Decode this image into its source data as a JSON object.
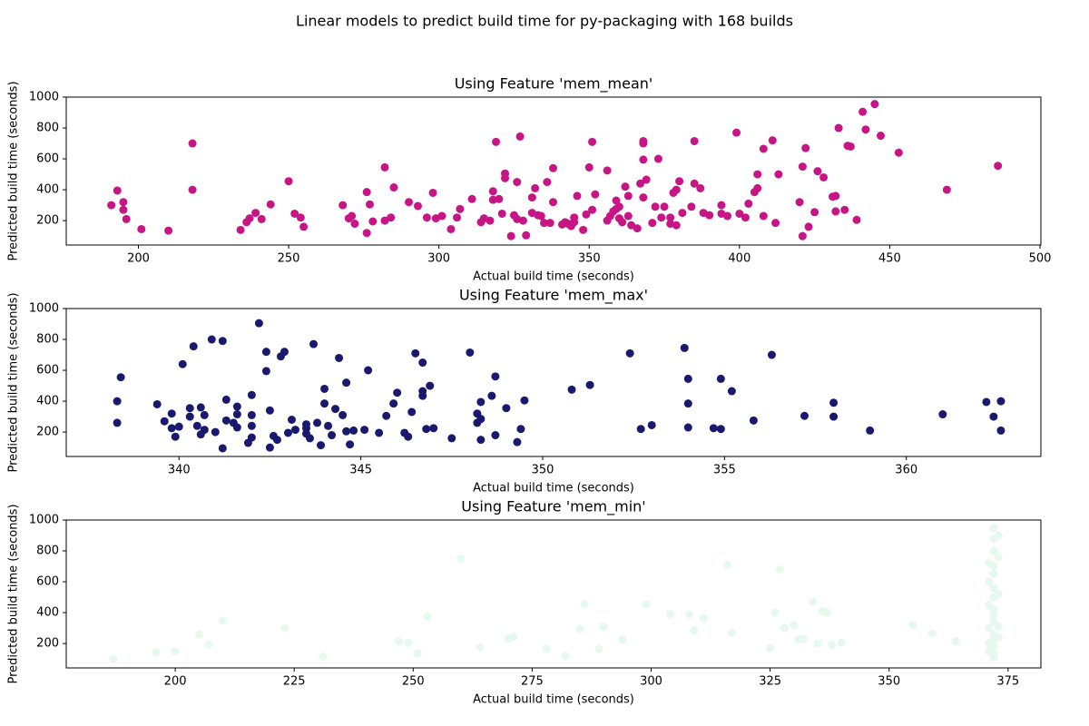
{
  "title": "Linear models to predict build time for py-packaging with 168 builds",
  "chart_data": [
    {
      "type": "scatter",
      "title": "Using Feature 'mem_mean'",
      "xlabel": "Actual build time (seconds)",
      "ylabel": "Predicted build time (seconds)",
      "color": "#c71585",
      "xlim": [
        176,
        500.3
      ],
      "ylim": [
        42,
        1000
      ],
      "xticks": [
        200,
        250,
        300,
        350,
        400,
        450,
        500
      ],
      "yticks": [
        200,
        400,
        600,
        800,
        1000
      ],
      "x": [
        191,
        193,
        195,
        195,
        196,
        201,
        210,
        218,
        218,
        234,
        236,
        237,
        239,
        241,
        244,
        250,
        252,
        254,
        255,
        268,
        270,
        271,
        272,
        276,
        276,
        277,
        278,
        282,
        282,
        284,
        285,
        290,
        293,
        296,
        298,
        299,
        301,
        304,
        306,
        307,
        311,
        314,
        315,
        317,
        318,
        318,
        319,
        320,
        321,
        322,
        322,
        324,
        325,
        326,
        326,
        327,
        328,
        329,
        331,
        331,
        332,
        333,
        334,
        335,
        336,
        337,
        338,
        338,
        341,
        342,
        343,
        344,
        345,
        345,
        346,
        348,
        349,
        350,
        351,
        351,
        352,
        356,
        356,
        357,
        358,
        359,
        359,
        360,
        360,
        361,
        362,
        363,
        363,
        364,
        366,
        367,
        368,
        368,
        368,
        368,
        369,
        371,
        372,
        373,
        374,
        375,
        377,
        377,
        378,
        379,
        379,
        380,
        381,
        384,
        385,
        385,
        387,
        388,
        390,
        394,
        394,
        396,
        399,
        400,
        402,
        403,
        405,
        406,
        406,
        408,
        408,
        411,
        412,
        413,
        420,
        421,
        421,
        422,
        423,
        425,
        426,
        428,
        431,
        432,
        432,
        433,
        435,
        436,
        437,
        439,
        441,
        442,
        445,
        447,
        453,
        469,
        486
      ],
      "values": [
        300,
        395,
        270,
        320,
        210,
        145,
        135,
        700,
        400,
        140,
        190,
        215,
        250,
        210,
        305,
        455,
        245,
        220,
        160,
        300,
        215,
        230,
        180,
        120,
        385,
        305,
        195,
        545,
        200,
        220,
        415,
        320,
        295,
        220,
        380,
        215,
        230,
        145,
        220,
        275,
        340,
        190,
        215,
        200,
        335,
        390,
        710,
        340,
        245,
        475,
        505,
        100,
        235,
        210,
        450,
        745,
        200,
        105,
        350,
        250,
        410,
        235,
        230,
        185,
        450,
        185,
        540,
        320,
        175,
        190,
        180,
        165,
        190,
        220,
        360,
        140,
        240,
        545,
        710,
        270,
        370,
        200,
        525,
        230,
        260,
        330,
        275,
        290,
        215,
        190,
        420,
        230,
        360,
        170,
        150,
        440,
        700,
        715,
        350,
        595,
        465,
        185,
        290,
        600,
        220,
        290,
        180,
        220,
        380,
        400,
        170,
        455,
        250,
        290,
        440,
        715,
        410,
        250,
        235,
        300,
        245,
        230,
        770,
        245,
        220,
        310,
        385,
        410,
        500,
        230,
        665,
        720,
        185,
        500,
        320,
        100,
        550,
        670,
        160,
        255,
        520,
        480,
        355,
        360,
        260,
        800,
        270,
        685,
        680,
        205,
        905,
        790,
        955,
        750,
        640,
        400,
        555
      ]
    },
    {
      "type": "scatter",
      "title": "Using Feature 'mem_max'",
      "xlabel": "Actual build time (seconds)",
      "ylabel": "Predicted build time (seconds)",
      "color": "#191970",
      "xlim": [
        336.9,
        363.7
      ],
      "ylim": [
        42,
        1000
      ],
      "xticks": [
        340,
        345,
        350,
        355,
        360
      ],
      "yticks": [
        200,
        400,
        600,
        800,
        1000
      ],
      "x": [
        338.3,
        338.3,
        338.4,
        339.4,
        339.6,
        339.8,
        339.8,
        339.9,
        340,
        340.1,
        340.3,
        340.3,
        340.4,
        340.5,
        340.6,
        340.6,
        340.7,
        340.7,
        340.9,
        341,
        341.2,
        341.3,
        341.3,
        341.2,
        341.5,
        341.6,
        341.6,
        341.6,
        341.9,
        342,
        342,
        342,
        342,
        342.2,
        342.4,
        342.4,
        342.5,
        342.5,
        342.6,
        342.7,
        342.8,
        342.9,
        343,
        343.1,
        343.2,
        343.5,
        343.5,
        343.5,
        343.6,
        343.7,
        343.8,
        343.9,
        344,
        344,
        344.1,
        344.2,
        344.3,
        344.5,
        344.4,
        344.6,
        344.6,
        344.7,
        344.8,
        345.1,
        345.2,
        345.5,
        345.7,
        345.9,
        346,
        346.2,
        346.3,
        346.4,
        346.5,
        346.7,
        346.7,
        346.7,
        346.8,
        346.9,
        347,
        347.5,
        348,
        348.2,
        348.2,
        348.3,
        348.3,
        348.3,
        348.6,
        348.7,
        348.7,
        349,
        349.3,
        349.4,
        349.5,
        350.8,
        351.3,
        352.4,
        352.7,
        353,
        353.9,
        354,
        354,
        354,
        354.7,
        354.9,
        354.9,
        355.2,
        355.8,
        356.3,
        357.2,
        358,
        358,
        359,
        361,
        362.2,
        362.4,
        362.6,
        362.6
      ],
      "values": [
        400,
        260,
        555,
        380,
        270,
        320,
        225,
        170,
        235,
        640,
        355,
        300,
        755,
        240,
        360,
        185,
        310,
        215,
        800,
        200,
        790,
        410,
        275,
        95,
        260,
        365,
        230,
        315,
        130,
        165,
        310,
        240,
        440,
        905,
        720,
        595,
        340,
        100,
        175,
        150,
        690,
        720,
        195,
        280,
        215,
        250,
        190,
        225,
        160,
        770,
        260,
        115,
        480,
        385,
        240,
        180,
        350,
        310,
        680,
        205,
        520,
        120,
        210,
        215,
        600,
        195,
        305,
        385,
        455,
        195,
        170,
        330,
        710,
        650,
        435,
        465,
        220,
        500,
        225,
        160,
        715,
        260,
        320,
        285,
        395,
        150,
        435,
        560,
        180,
        355,
        135,
        220,
        405,
        475,
        505,
        710,
        220,
        245,
        745,
        230,
        385,
        545,
        225,
        545,
        220,
        465,
        275,
        700,
        305,
        390,
        300,
        210,
        315,
        395,
        300,
        400,
        210
      ]
    },
    {
      "type": "scatter",
      "title": "Using Feature 'mem_min'",
      "xlabel": "Actual build time (seconds)",
      "ylabel": "Predicted build time (seconds)",
      "color": "#e6f9ee",
      "xlim": [
        177.1,
        381.9
      ],
      "ylim": [
        42,
        1000
      ],
      "xticks": [
        200,
        225,
        250,
        275,
        300,
        325,
        350,
        375
      ],
      "yticks": [
        200,
        400,
        600,
        800,
        1000
      ],
      "x": [
        187,
        196,
        200,
        205,
        207,
        210,
        223,
        231,
        247,
        249,
        251,
        253,
        260,
        264,
        270,
        271,
        278,
        282,
        286,
        285,
        289,
        290,
        294,
        299,
        304,
        308,
        309,
        311,
        316,
        317,
        325,
        326,
        327,
        328,
        330,
        331,
        332,
        334,
        335,
        336,
        337,
        338,
        340,
        355,
        359,
        364,
        371,
        371,
        371,
        371,
        371,
        371,
        372,
        372,
        372,
        372,
        372,
        372,
        372,
        372,
        372,
        372,
        372,
        372,
        372,
        372,
        372,
        373,
        373,
        373,
        373,
        373
      ],
      "values": [
        100,
        145,
        150,
        260,
        195,
        350,
        300,
        115,
        215,
        205,
        135,
        375,
        750,
        175,
        230,
        245,
        165,
        120,
        455,
        295,
        165,
        310,
        225,
        455,
        390,
        390,
        285,
        365,
        710,
        270,
        170,
        400,
        680,
        300,
        320,
        225,
        230,
        470,
        200,
        410,
        400,
        190,
        205,
        320,
        265,
        215,
        720,
        600,
        450,
        300,
        200,
        150,
        950,
        880,
        800,
        700,
        650,
        560,
        500,
        420,
        380,
        340,
        260,
        230,
        180,
        130,
        110,
        900,
        760,
        520,
        310,
        240
      ]
    }
  ]
}
